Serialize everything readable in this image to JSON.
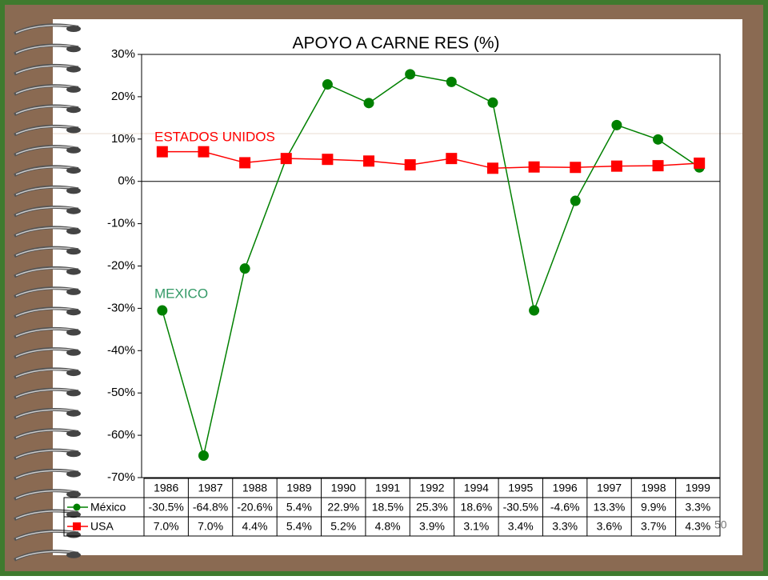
{
  "chart_data": {
    "type": "line",
    "title": "APOYO A CARNE RES (%)",
    "categories": [
      "1986",
      "1987",
      "1988",
      "1989",
      "1990",
      "1991",
      "1992",
      null,
      "1994",
      "1995",
      "1996",
      "1997",
      "1998",
      "1999"
    ],
    "series": [
      {
        "name": "México",
        "color": "#008000",
        "marker": "circle",
        "values": [
          -30.5,
          -64.8,
          -20.6,
          5.4,
          22.9,
          18.5,
          25.3,
          23.5,
          18.6,
          -30.5,
          -4.6,
          13.3,
          9.9,
          3.3
        ],
        "value_labels": [
          "-30.5%",
          "-64.8%",
          "-20.6%",
          "5.4%",
          "22.9%",
          "18.5%",
          "25.3%",
          null,
          "18.6%",
          "-30.5%",
          "-4.6%",
          "13.3%",
          "9.9%",
          "3.3%"
        ]
      },
      {
        "name": "USA",
        "color": "#ff0000",
        "marker": "square",
        "values": [
          7.0,
          7.0,
          4.4,
          5.4,
          5.2,
          4.8,
          3.9,
          5.4,
          3.1,
          3.4,
          3.3,
          3.6,
          3.7,
          4.3
        ],
        "value_labels": [
          "7.0%",
          "7.0%",
          "4.4%",
          "5.4%",
          "5.2%",
          "4.8%",
          "3.9%",
          null,
          "3.1%",
          "3.4%",
          "3.3%",
          "3.6%",
          "3.7%",
          "4.3%"
        ]
      }
    ],
    "annotations": [
      {
        "text": "ESTADOS UNIDOS",
        "color": "#ff0000"
      },
      {
        "text": "MEXICO",
        "color": "#339966"
      }
    ],
    "ylim": [
      -70,
      30
    ],
    "yticks": [
      {
        "value": -70,
        "label": "-70%"
      },
      {
        "value": -60,
        "label": "-60%"
      },
      {
        "value": -50,
        "label": "-50%"
      },
      {
        "value": -40,
        "label": "-40%"
      },
      {
        "value": -30,
        "label": "-30%"
      },
      {
        "value": -20,
        "label": "-20%"
      },
      {
        "value": -10,
        "label": "-10%"
      },
      {
        "value": 0,
        "label": "0%"
      },
      {
        "value": 10,
        "label": "10%"
      },
      {
        "value": 20,
        "label": "20%"
      },
      {
        "value": 30,
        "label": "30%"
      }
    ],
    "grid": false,
    "slide_number": "50"
  }
}
